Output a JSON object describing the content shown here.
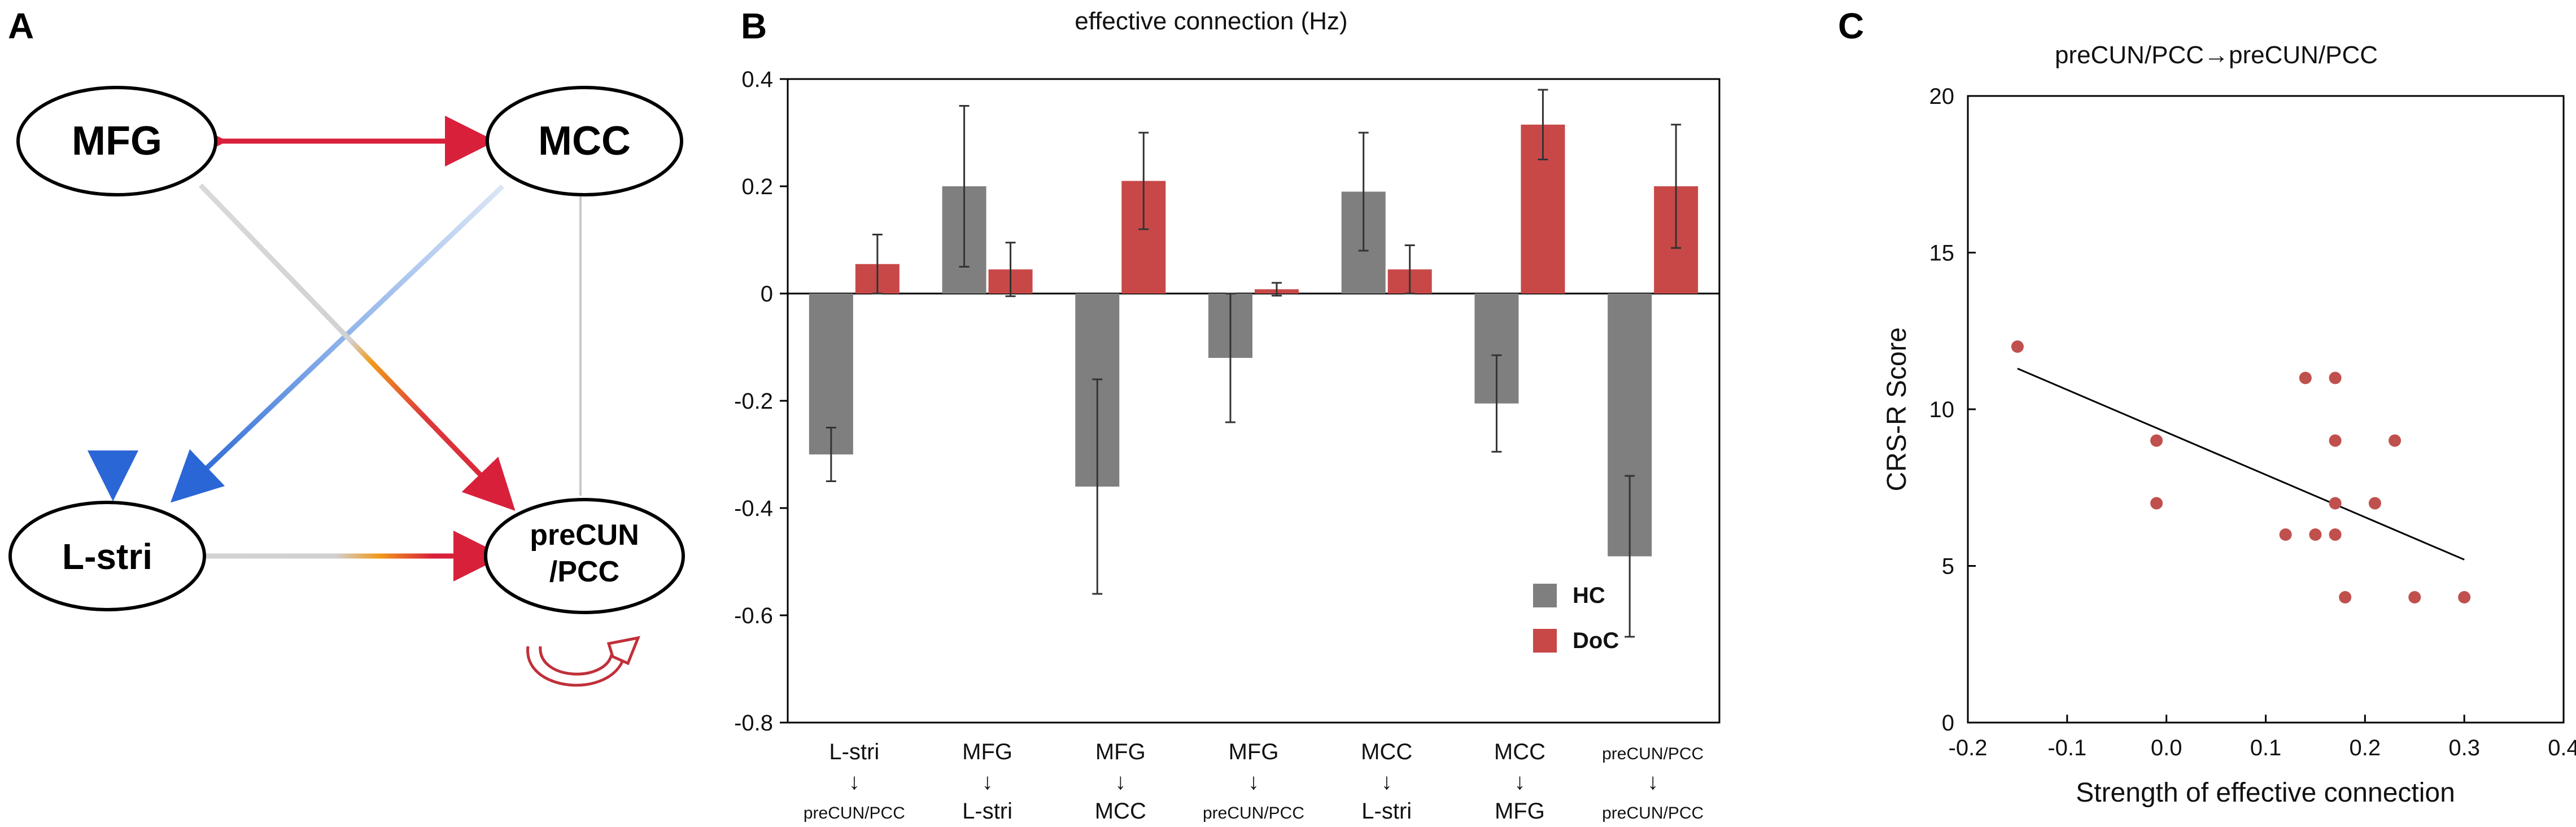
{
  "panels": {
    "a": "A",
    "b": "B",
    "c": "C"
  },
  "network": {
    "nodes": {
      "mfg": "MFG",
      "mcc": "MCC",
      "lstri": "L-stri",
      "precun_line1": "preCUN",
      "precun_line2": "/PCC"
    },
    "colors": {
      "red": "#d9203a",
      "blue": "#2a66d6",
      "gray": "#c9c9c9",
      "orange": "#f29a1a"
    }
  },
  "bar_chart": {
    "title": "effective connection (Hz)",
    "legend": {
      "hc": "HC",
      "doc": "DoC"
    },
    "colors": {
      "hc": "#7f7f7f",
      "doc": "#c84848"
    },
    "arrow_glyph": "↓",
    "category_labels": [
      {
        "from": "L-stri",
        "to": "preCUN/PCC"
      },
      {
        "from": "MFG",
        "to": "L-stri"
      },
      {
        "from": "MFG",
        "to": "MCC"
      },
      {
        "from": "MFG",
        "to": "preCUN/PCC"
      },
      {
        "from": "MCC",
        "to": "L-stri"
      },
      {
        "from": "MCC",
        "to": "MFG"
      },
      {
        "from": "preCUN/PCC",
        "to": "preCUN/PCC"
      }
    ]
  },
  "scatter_chart": {
    "title": "preCUN/PCC→preCUN/PCC",
    "xlabel": "Strength of effective connection",
    "ylabel": "CRS-R Score",
    "point_color": "#c0504d"
  },
  "chart_data": [
    {
      "type": "bar",
      "title": "effective connection (Hz)",
      "categories": [
        "L-stri→preCUN/PCC",
        "MFG→L-stri",
        "MFG→MCC",
        "MFG→preCUN/PCC",
        "MCC→L-stri",
        "MCC→MFG",
        "preCUN/PCC→preCUN/PCC"
      ],
      "series": [
        {
          "name": "HC",
          "values": [
            -0.3,
            0.2,
            -0.36,
            -0.12,
            0.19,
            -0.205,
            -0.49
          ],
          "error": [
            0.05,
            0.15,
            0.2,
            0.12,
            0.11,
            0.09,
            0.15
          ]
        },
        {
          "name": "DoC",
          "values": [
            0.055,
            0.045,
            0.21,
            0.008,
            0.045,
            0.315,
            0.2
          ],
          "error": [
            0.055,
            0.05,
            0.09,
            0.012,
            0.045,
            0.065,
            0.115
          ]
        }
      ],
      "ylim": [
        -0.8,
        0.4
      ],
      "yticks": [
        -0.8,
        -0.6,
        -0.4,
        -0.2,
        0,
        0.2,
        0.4
      ],
      "ytick_labels": [
        "-0.8",
        "-0.6",
        "-0.4",
        "-0.2",
        "0",
        "0.2",
        "0.4"
      ],
      "xlabel": "",
      "ylabel": "",
      "legend": "bottom-right"
    },
    {
      "type": "scatter",
      "title": "preCUN/PCC→preCUN/PCC",
      "xlabel": "Strength of effective connection",
      "ylabel": "CRS-R Score",
      "x": [
        -0.15,
        -0.01,
        -0.01,
        0.12,
        0.14,
        0.15,
        0.17,
        0.17,
        0.17,
        0.17,
        0.18,
        0.21,
        0.23,
        0.25,
        0.3
      ],
      "y": [
        12,
        9,
        7,
        6,
        11,
        6,
        11,
        9,
        7,
        6,
        4,
        7,
        9,
        4,
        4
      ],
      "fit_line": {
        "x": [
          -0.15,
          0.3
        ],
        "y": [
          11.3,
          5.2
        ]
      },
      "xlim": [
        -0.2,
        0.4
      ],
      "ylim": [
        0,
        20
      ],
      "xticks": [
        -0.2,
        -0.1,
        0.0,
        0.1,
        0.2,
        0.3,
        0.4
      ],
      "xtick_labels": [
        "-0.2",
        "-0.1",
        "0.0",
        "0.1",
        "0.2",
        "0.3",
        "0.4"
      ],
      "yticks": [
        0,
        5,
        10,
        15,
        20
      ],
      "ytick_labels": [
        "0",
        "5",
        "10",
        "15",
        "20"
      ]
    }
  ]
}
